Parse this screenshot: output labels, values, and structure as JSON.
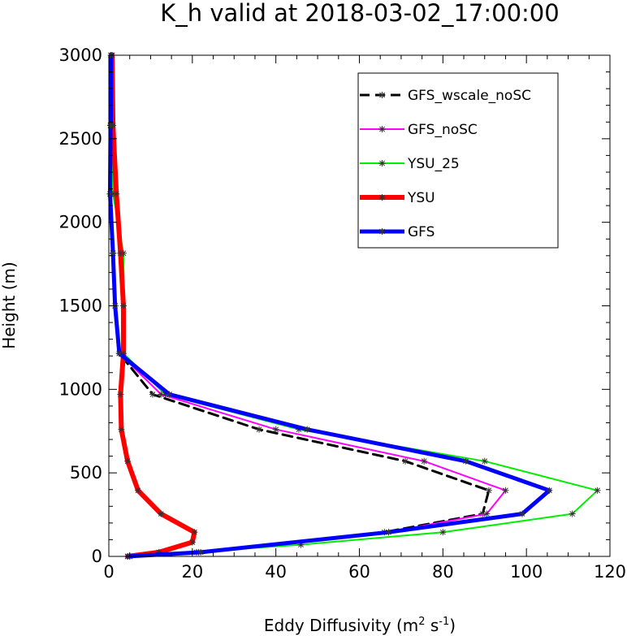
{
  "chart_data": {
    "type": "line",
    "title": "K_h valid at 2018-03-02_17:00:00",
    "xlabel": "Eddy Diffusivity (m",
    "xlabel_sup1": "2",
    "xlabel_mid": " s",
    "xlabel_sup2": "-1",
    "xlabel_end": ")",
    "ylabel": "Height (m)",
    "xlim": [
      0,
      120
    ],
    "ylim": [
      0,
      3000
    ],
    "xticks": [
      0,
      20,
      40,
      60,
      80,
      100,
      120
    ],
    "yticks": [
      0,
      500,
      1000,
      1500,
      2000,
      2500,
      3000
    ],
    "legend_position": "top-right",
    "series": [
      {
        "name": "GFS_wscale_noSC",
        "color": "#000000",
        "dash": "12,7",
        "width": 3,
        "x": [
          4.5,
          21,
          66,
          89.5,
          91,
          71,
          36,
          10.5,
          2.5,
          1.5,
          1.0,
          0.3,
          0.4,
          0.5,
          0.5
        ],
        "y": [
          0,
          25,
          145,
          255,
          395,
          570,
          760,
          970,
          1215,
          1500,
          1815,
          2170,
          2580,
          2580,
          3000
        ]
      },
      {
        "name": "GFS_noSC",
        "color": "#ff00ff",
        "dash": "",
        "width": 2,
        "x": [
          5,
          21.5,
          67,
          90.5,
          95,
          75.5,
          40,
          12.5,
          2.5,
          1.5,
          1.0,
          0.3,
          0.4,
          0.5,
          0.5
        ],
        "y": [
          0,
          25,
          145,
          255,
          395,
          570,
          760,
          970,
          1215,
          1500,
          1815,
          2170,
          2580,
          2580,
          3000
        ]
      },
      {
        "name": "YSU_25",
        "color": "#00ee00",
        "dash": "",
        "width": 2,
        "x": [
          5,
          46,
          80,
          111,
          117,
          90,
          45.5,
          13.5,
          3.5,
          3.5,
          3.5,
          1.0,
          0.6,
          0.6,
          0.8
        ],
        "y": [
          0,
          70,
          145,
          255,
          395,
          570,
          760,
          970,
          1215,
          1500,
          1815,
          2170,
          2580,
          2580,
          3000
        ]
      },
      {
        "name": "YSU",
        "color": "#ff0000",
        "dash": "",
        "width": 6,
        "x": [
          4.5,
          12,
          20,
          20.5,
          12.5,
          7,
          4.5,
          3,
          2.8,
          3.5,
          3.5,
          2.8,
          1.8,
          1.0,
          0.8
        ],
        "y": [
          0,
          25,
          85,
          145,
          255,
          395,
          570,
          760,
          970,
          1215,
          1500,
          1815,
          2170,
          2580,
          3000
        ]
      },
      {
        "name": "GFS",
        "color": "#0000ff",
        "dash": "",
        "width": 5,
        "x": [
          4.5,
          22,
          67,
          99,
          105.5,
          85.5,
          47.5,
          14.5,
          2.5,
          1.5,
          1.0,
          0.3,
          0.4,
          0.5,
          0.5
        ],
        "y": [
          0,
          25,
          145,
          255,
          395,
          570,
          760,
          970,
          1215,
          1500,
          1815,
          2170,
          2580,
          2580,
          3000
        ]
      }
    ]
  }
}
